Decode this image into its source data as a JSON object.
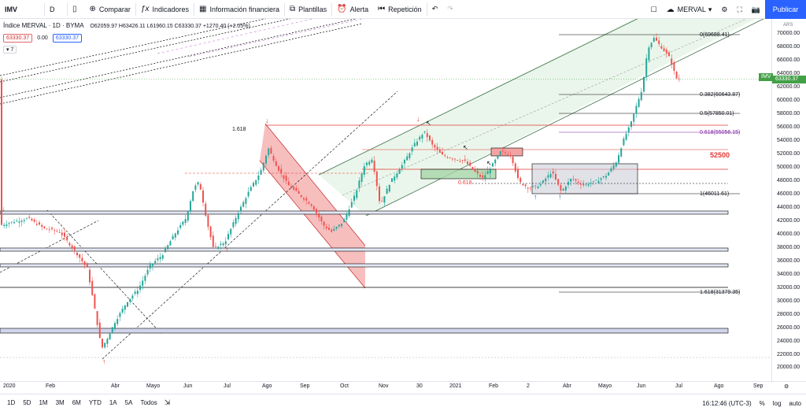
{
  "toolbar": {
    "symbol": "IMV",
    "interval": "D",
    "compare_label": "Comparar",
    "indicators_label": "Indicadores",
    "financials_label": "Información financiera",
    "templates_label": "Plantillas",
    "alert_label": "Alerta",
    "replay_label": "Repetición",
    "layout_name": "MERVAL",
    "publish_label": "Publicar"
  },
  "legend": {
    "title": "Índice MERVAL · 1D · BYMA",
    "ohlc": "O62059.97 H63426.11 L61960.15 C63330.37 +1270.40 (+2.05%)",
    "sell_price": "63330.37",
    "spread": "0.00",
    "buy_price": "63330.37",
    "indicator_count": "7"
  },
  "yaxis": {
    "currency": "ARS",
    "current_price": "63330.37",
    "symbol_badge": "IMV",
    "ticks": [
      "70000.00",
      "68000.00",
      "66000.00",
      "64000.00",
      "62000.00",
      "60000.00",
      "58000.00",
      "56000.00",
      "54000.00",
      "52000.00",
      "50000.00",
      "48000.00",
      "46000.00",
      "44000.00",
      "42000.00",
      "40000.00",
      "38000.00",
      "36000.00",
      "34000.00",
      "32000.00",
      "30000.00",
      "28000.00",
      "26000.00",
      "24000.00",
      "22000.00",
      "20000.00"
    ]
  },
  "xaxis": {
    "ticks": [
      "2020",
      "Feb",
      "Abr",
      "Mayo",
      "Jun",
      "Jul",
      "Ago",
      "Sep",
      "Oct",
      "Nov",
      "30",
      "2021",
      "Feb",
      "2",
      "Abr",
      "Mayo",
      "Jun",
      "Jul",
      "Ago",
      "Sep"
    ]
  },
  "annotations": {
    "fib_0": "0(69688.41)",
    "fib_0382": "0.382(60643.87)",
    "fib_05": "0.5(57850.01)",
    "fib_0618": "0.618(55056.15)",
    "fib_1": "1(46011.61)",
    "fib_1618": "1.618(31379.35)",
    "left_fib": "1.618",
    "level_52500": "52500",
    "small_0618": "0.618"
  },
  "bottom": {
    "ranges": [
      "1D",
      "5D",
      "1M",
      "3M",
      "6M",
      "YTD",
      "1A",
      "5A",
      "Todos"
    ],
    "time": "16:12:46 (UTC-3)",
    "percent": "%",
    "log": "log",
    "auto": "auto"
  },
  "colors": {
    "up": "#26a69a",
    "down": "#ef5350",
    "accent": "#2962ff",
    "channel_fill": "#e8f5e9",
    "red_channel_fill": "#f4a3a3"
  }
}
